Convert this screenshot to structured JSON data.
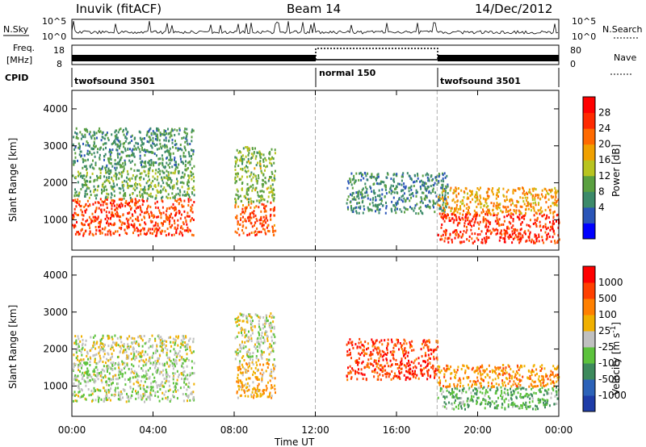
{
  "header": {
    "station": "Inuvik (fitACF)",
    "beam": "Beam 14",
    "date": "14/Dec/2012"
  },
  "top_panel": {
    "nsky_label": "N.Sky",
    "nsky_ticks": [
      "10^5",
      "10^0"
    ],
    "nsearch_label": "N.Search",
    "nsearch_ticks": [
      "10^5",
      "10^0"
    ],
    "freq_label_1": "Freq.",
    "freq_label_2": "[MHz]",
    "freq_ticks": [
      "18",
      "8"
    ],
    "nave_label": "Nave",
    "nave_ticks": [
      "80",
      "0"
    ],
    "cpid_label": "CPID",
    "cpid_segments": [
      {
        "name": "twofsound 3501",
        "start_hour": 0,
        "end_hour": 12
      },
      {
        "name": "normal 150",
        "start_hour": 12,
        "end_hour": 18
      },
      {
        "name": "twofsound 3501",
        "start_hour": 18,
        "end_hour": 24
      }
    ]
  },
  "colorbars": {
    "power": {
      "label": "Power [dB]",
      "ticks": [
        "28",
        "24",
        "20",
        "16",
        "12",
        "8",
        "4"
      ],
      "colors": [
        "#0000ff",
        "#2a55b8",
        "#3c8a6a",
        "#5aa040",
        "#b8c420",
        "#f0a000",
        "#ff6a00",
        "#ff2a00",
        "#ff0000"
      ]
    },
    "velocity": {
      "label": "Velocity [m s",
      "label_sup": "-1",
      "label_end": "]",
      "ticks": [
        "1000",
        "500",
        "100",
        "25",
        "-25",
        "-100",
        "-500",
        "-1000"
      ],
      "colors": [
        "#1e3ca8",
        "#2c62b8",
        "#3d8a5c",
        "#5cc23c",
        "#c0c0c0",
        "#f0b000",
        "#ff8000",
        "#ff4000",
        "#ff0000"
      ]
    }
  },
  "axes": {
    "ylabel": "Slant Range [km]",
    "yticks": [
      "4000",
      "3000",
      "2000",
      "1000"
    ],
    "xlabel": "Time UT",
    "xticks": [
      "00:00",
      "04:00",
      "08:00",
      "12:00",
      "16:00",
      "20:00",
      "00:00"
    ]
  },
  "chart_data": {
    "type": "heatmap",
    "title": "Inuvik (fitACF)",
    "xlabel": "Time UT",
    "ylabel": "Slant Range [km]",
    "xlim_hours": [
      0,
      24
    ],
    "ylim_km": [
      180,
      4500
    ],
    "panels": [
      {
        "quantity": "Power [dB]",
        "colorbar_range": [
          0,
          32
        ],
        "regions": [
          {
            "t_start": 0.0,
            "t_end": 6.0,
            "r_min": 600,
            "r_max": 1600,
            "value": 26
          },
          {
            "t_start": 0.0,
            "t_end": 6.0,
            "r_min": 1600,
            "r_max": 2400,
            "value": 12
          },
          {
            "t_start": 0.0,
            "t_end": 6.0,
            "r_min": 2400,
            "r_max": 3500,
            "value": 10
          },
          {
            "t_start": 8.0,
            "t_end": 10.0,
            "r_min": 600,
            "r_max": 1500,
            "value": 25
          },
          {
            "t_start": 8.0,
            "t_end": 10.0,
            "r_min": 1500,
            "r_max": 3000,
            "value": 14
          },
          {
            "t_start": 13.5,
            "t_end": 18.5,
            "r_min": 1200,
            "r_max": 2300,
            "value": 9
          },
          {
            "t_start": 18.0,
            "t_end": 24.0,
            "r_min": 400,
            "r_max": 1200,
            "value": 27
          },
          {
            "t_start": 18.0,
            "t_end": 24.0,
            "r_min": 1200,
            "r_max": 1900,
            "value": 20
          }
        ]
      },
      {
        "quantity": "Velocity [m s-1]",
        "colorbar_range": [
          -1000,
          1000
        ],
        "regions": [
          {
            "t_start": 0.0,
            "t_end": 6.0,
            "r_min": 600,
            "r_max": 1700,
            "value": -80
          },
          {
            "t_start": 0.0,
            "t_end": 6.0,
            "r_min": 1700,
            "r_max": 2400,
            "value": 10
          },
          {
            "t_start": 8.0,
            "t_end": 10.0,
            "r_min": 700,
            "r_max": 1700,
            "value": 300
          },
          {
            "t_start": 8.0,
            "t_end": 10.0,
            "r_min": 1700,
            "r_max": 3000,
            "value": 0
          },
          {
            "t_start": 13.5,
            "t_end": 18.0,
            "r_min": 1200,
            "r_max": 2300,
            "value": 700
          },
          {
            "t_start": 18.0,
            "t_end": 24.0,
            "r_min": 400,
            "r_max": 1000,
            "value": -300
          },
          {
            "t_start": 18.0,
            "t_end": 24.0,
            "r_min": 1000,
            "r_max": 1600,
            "value": 400
          }
        ]
      }
    ]
  }
}
